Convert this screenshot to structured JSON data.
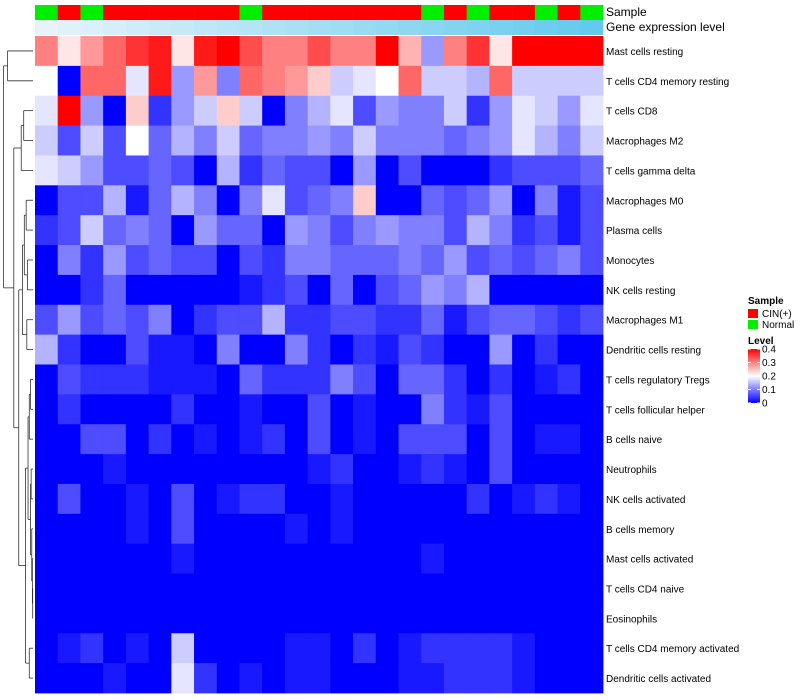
{
  "chart_data": {
    "type": "heatmap",
    "title": "",
    "value_label": "Level",
    "color_scale": {
      "min": 0,
      "mid": 0.2,
      "max": 0.4,
      "low_color": "#0000ff",
      "mid_color": "#ffffff",
      "high_color": "#ff0000"
    },
    "legend_ticks": [
      "0.4",
      "0.3",
      "0.2",
      "0.1",
      "0"
    ],
    "legend_tick_values": [
      0.4,
      0.3,
      0.2,
      0.1,
      0
    ],
    "annotation_rows": [
      {
        "name": "Sample"
      },
      {
        "name": "Gene expression level"
      }
    ],
    "sample_legend": {
      "title": "Sample",
      "entries": [
        {
          "label": "CIN(+)",
          "color": "#ff0000"
        },
        {
          "label": "Normal",
          "color": "#00ee00"
        }
      ]
    },
    "sample_groups": [
      "Normal",
      "CIN(+)",
      "Normal",
      "CIN(+)",
      "CIN(+)",
      "CIN(+)",
      "CIN(+)",
      "CIN(+)",
      "CIN(+)",
      "Normal",
      "CIN(+)",
      "CIN(+)",
      "CIN(+)",
      "CIN(+)",
      "CIN(+)",
      "CIN(+)",
      "CIN(+)",
      "Normal",
      "CIN(+)",
      "Normal",
      "CIN(+)",
      "CIN(+)",
      "Normal",
      "CIN(+)",
      "Normal"
    ],
    "expression_level": [
      0.0,
      0.04,
      0.08,
      0.12,
      0.16,
      0.2,
      0.24,
      0.28,
      0.32,
      0.36,
      0.4,
      0.44,
      0.48,
      0.52,
      0.56,
      0.6,
      0.64,
      0.68,
      0.72,
      0.76,
      0.8,
      0.84,
      0.88,
      0.92,
      0.96
    ],
    "expression_colors": [
      "#e6f3fb",
      "#5ec8ec"
    ],
    "rows": [
      "Mast cells resting",
      "T cells CD4 memory resting",
      "T cells CD8",
      "Macrophages M2",
      "T cells gamma delta",
      "Macrophages M0",
      "Plasma cells",
      "Monocytes",
      "NK cells resting",
      "Macrophages M1",
      "Dendritic cells resting",
      "T cells regulatory  Tregs",
      "T cells follicular helper",
      "B cells naive",
      "Neutrophils",
      "NK cells activated",
      "B cells memory",
      "Mast cells activated",
      "T cells CD4 naive",
      "Eosinophils",
      "T cells CD4 memory activated",
      "Dendritic cells activated"
    ],
    "values": [
      [
        0.3,
        0.22,
        0.28,
        0.32,
        0.36,
        0.38,
        0.22,
        0.38,
        0.4,
        0.34,
        0.3,
        0.3,
        0.34,
        0.3,
        0.3,
        0.4,
        0.26,
        0.12,
        0.3,
        0.36,
        0.22,
        0.4,
        0.4,
        0.4,
        0.4
      ],
      [
        0.2,
        0.0,
        0.32,
        0.32,
        0.18,
        0.38,
        0.12,
        0.28,
        0.1,
        0.32,
        0.3,
        0.28,
        0.24,
        0.16,
        0.18,
        0.2,
        0.32,
        0.16,
        0.16,
        0.14,
        0.32,
        0.16,
        0.16,
        0.16,
        0.16
      ],
      [
        0.18,
        0.4,
        0.12,
        0.0,
        0.24,
        0.04,
        0.12,
        0.16,
        0.24,
        0.16,
        0.0,
        0.1,
        0.14,
        0.18,
        0.06,
        0.12,
        0.1,
        0.1,
        0.16,
        0.04,
        0.12,
        0.18,
        0.16,
        0.12,
        0.18
      ],
      [
        0.16,
        0.06,
        0.16,
        0.06,
        0.2,
        0.08,
        0.14,
        0.1,
        0.16,
        0.08,
        0.1,
        0.1,
        0.12,
        0.1,
        0.16,
        0.1,
        0.1,
        0.1,
        0.08,
        0.1,
        0.12,
        0.18,
        0.14,
        0.1,
        0.16
      ],
      [
        0.18,
        0.16,
        0.12,
        0.06,
        0.06,
        0.08,
        0.06,
        0.0,
        0.14,
        0.04,
        0.08,
        0.06,
        0.06,
        0.0,
        0.12,
        0.0,
        0.06,
        0.0,
        0.0,
        0.0,
        0.04,
        0.06,
        0.06,
        0.06,
        0.08
      ],
      [
        0.0,
        0.06,
        0.06,
        0.14,
        0.02,
        0.08,
        0.14,
        0.1,
        0.0,
        0.1,
        0.18,
        0.06,
        0.08,
        0.1,
        0.24,
        0.0,
        0.0,
        0.08,
        0.06,
        0.08,
        0.12,
        0.0,
        0.1,
        0.02,
        0.06
      ],
      [
        0.04,
        0.06,
        0.16,
        0.08,
        0.1,
        0.08,
        0.0,
        0.12,
        0.08,
        0.08,
        0.0,
        0.12,
        0.1,
        0.06,
        0.1,
        0.12,
        0.1,
        0.1,
        0.06,
        0.14,
        0.1,
        0.04,
        0.06,
        0.02,
        0.06
      ],
      [
        0.0,
        0.1,
        0.04,
        0.12,
        0.06,
        0.08,
        0.06,
        0.06,
        0.0,
        0.06,
        0.04,
        0.1,
        0.1,
        0.08,
        0.08,
        0.08,
        0.1,
        0.08,
        0.12,
        0.06,
        0.08,
        0.06,
        0.08,
        0.1,
        0.06
      ],
      [
        0.0,
        0.0,
        0.04,
        0.08,
        0.0,
        0.0,
        0.0,
        0.0,
        0.0,
        0.02,
        0.04,
        0.06,
        0.0,
        0.08,
        0.0,
        0.06,
        0.08,
        0.12,
        0.1,
        0.14,
        0.0,
        0.0,
        0.0,
        0.0,
        0.0
      ],
      [
        0.06,
        0.12,
        0.06,
        0.08,
        0.06,
        0.1,
        0.0,
        0.04,
        0.06,
        0.06,
        0.14,
        0.04,
        0.04,
        0.06,
        0.06,
        0.04,
        0.04,
        0.08,
        0.02,
        0.06,
        0.08,
        0.08,
        0.06,
        0.04,
        0.06
      ],
      [
        0.14,
        0.04,
        0.0,
        0.0,
        0.06,
        0.02,
        0.02,
        0.0,
        0.1,
        0.0,
        0.0,
        0.1,
        0.04,
        0.0,
        0.04,
        0.02,
        0.06,
        0.04,
        0.0,
        0.0,
        0.12,
        0.0,
        0.04,
        0.0,
        0.0
      ],
      [
        0.0,
        0.06,
        0.04,
        0.04,
        0.04,
        0.02,
        0.02,
        0.02,
        0.0,
        0.08,
        0.04,
        0.04,
        0.04,
        0.1,
        0.06,
        0.0,
        0.08,
        0.08,
        0.04,
        0.0,
        0.04,
        0.0,
        0.02,
        0.04,
        0.0
      ],
      [
        0.0,
        0.04,
        0.0,
        0.0,
        0.0,
        0.0,
        0.04,
        0.0,
        0.0,
        0.02,
        0.0,
        0.0,
        0.06,
        0.0,
        0.02,
        0.0,
        0.0,
        0.1,
        0.04,
        0.02,
        0.06,
        0.0,
        0.0,
        0.0,
        0.0
      ],
      [
        0.0,
        0.0,
        0.06,
        0.06,
        0.0,
        0.04,
        0.0,
        0.02,
        0.0,
        0.02,
        0.04,
        0.0,
        0.06,
        0.0,
        0.02,
        0.0,
        0.06,
        0.06,
        0.06,
        0.0,
        0.06,
        0.0,
        0.02,
        0.02,
        0.0
      ],
      [
        0.0,
        0.0,
        0.0,
        0.02,
        0.0,
        0.0,
        0.0,
        0.0,
        0.0,
        0.0,
        0.0,
        0.0,
        0.02,
        0.04,
        0.0,
        0.0,
        0.02,
        0.04,
        0.02,
        0.0,
        0.06,
        0.0,
        0.0,
        0.0,
        0.0
      ],
      [
        0.0,
        0.06,
        0.0,
        0.0,
        0.02,
        0.0,
        0.06,
        0.0,
        0.02,
        0.04,
        0.04,
        0.0,
        0.0,
        0.02,
        0.0,
        0.0,
        0.0,
        0.0,
        0.0,
        0.04,
        0.0,
        0.02,
        0.04,
        0.02,
        0.0
      ],
      [
        0.0,
        0.0,
        0.0,
        0.0,
        0.02,
        0.0,
        0.06,
        0.0,
        0.0,
        0.0,
        0.0,
        0.02,
        0.0,
        0.02,
        0.0,
        0.0,
        0.0,
        0.0,
        0.0,
        0.0,
        0.0,
        0.0,
        0.0,
        0.0,
        0.0
      ],
      [
        0.0,
        0.0,
        0.0,
        0.0,
        0.0,
        0.0,
        0.02,
        0.0,
        0.0,
        0.0,
        0.0,
        0.0,
        0.0,
        0.0,
        0.0,
        0.0,
        0.0,
        0.02,
        0.0,
        0.0,
        0.0,
        0.0,
        0.0,
        0.0,
        0.0
      ],
      [
        0.0,
        0.0,
        0.0,
        0.0,
        0.0,
        0.0,
        0.0,
        0.0,
        0.0,
        0.0,
        0.0,
        0.0,
        0.0,
        0.0,
        0.0,
        0.0,
        0.0,
        0.0,
        0.0,
        0.0,
        0.0,
        0.0,
        0.0,
        0.0,
        0.0
      ],
      [
        0.0,
        0.0,
        0.0,
        0.0,
        0.0,
        0.0,
        0.0,
        0.0,
        0.0,
        0.0,
        0.0,
        0.0,
        0.0,
        0.0,
        0.0,
        0.0,
        0.0,
        0.0,
        0.0,
        0.0,
        0.0,
        0.0,
        0.0,
        0.0,
        0.0
      ],
      [
        0.0,
        0.02,
        0.04,
        0.0,
        0.02,
        0.0,
        0.16,
        0.0,
        0.0,
        0.0,
        0.0,
        0.02,
        0.02,
        0.0,
        0.04,
        0.0,
        0.02,
        0.04,
        0.04,
        0.04,
        0.04,
        0.02,
        0.0,
        0.0,
        0.0
      ],
      [
        0.0,
        0.0,
        0.0,
        0.02,
        0.0,
        0.0,
        0.18,
        0.04,
        0.0,
        0.02,
        0.0,
        0.02,
        0.02,
        0.0,
        0.0,
        0.0,
        0.02,
        0.02,
        0.04,
        0.04,
        0.04,
        0.02,
        0.0,
        0.0,
        0.0
      ]
    ]
  }
}
